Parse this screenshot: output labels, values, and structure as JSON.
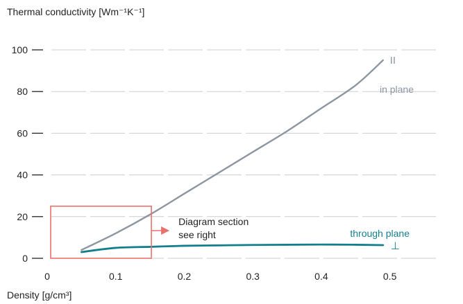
{
  "chart_data": {
    "type": "line",
    "ylabel": "Thermal conductivity [Wm⁻¹K⁻¹]",
    "xlabel": "Density [g/cm³]",
    "xlim": [
      0,
      0.55
    ],
    "ylim": [
      0,
      100
    ],
    "x_ticks": [
      0,
      0.1,
      0.2,
      0.3,
      0.4,
      0.5
    ],
    "x_tick_labels": [
      "0",
      "0.1",
      "0.2",
      "0.3",
      "0.4",
      "0.5"
    ],
    "y_ticks": [
      0,
      20,
      40,
      60,
      80,
      100
    ],
    "y_tick_labels": [
      "0",
      "20",
      "40",
      "60",
      "80",
      "100"
    ],
    "grid": "horizontal dashed",
    "series": [
      {
        "name": "in plane",
        "symbol": "II",
        "color": "#8c95a0",
        "x": [
          0.05,
          0.1,
          0.15,
          0.2,
          0.25,
          0.3,
          0.35,
          0.4,
          0.45,
          0.49
        ],
        "y": [
          4,
          12,
          21,
          31,
          41,
          51,
          61,
          72,
          83,
          95
        ]
      },
      {
        "name": "through plane",
        "symbol": "⊥",
        "color": "#137e8c",
        "x": [
          0.05,
          0.1,
          0.15,
          0.2,
          0.25,
          0.3,
          0.35,
          0.4,
          0.45,
          0.49
        ],
        "y": [
          3,
          5,
          5.5,
          6,
          6.2,
          6.4,
          6.5,
          6.6,
          6.5,
          6.3
        ]
      }
    ],
    "annotation": {
      "text_line1": "Diagram section",
      "text_line2": "see right",
      "box": {
        "x0": 0.0,
        "x1": 0.15,
        "y0": 0,
        "y1": 25
      },
      "color": "#e8716a"
    }
  }
}
